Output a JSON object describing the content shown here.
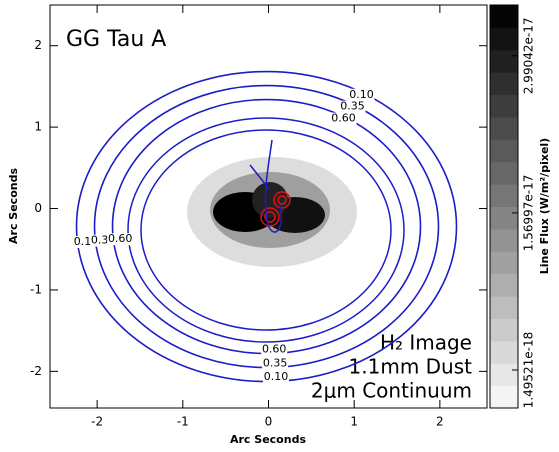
{
  "chart_data": {
    "type": "contour",
    "title": "GG Tau A",
    "x_label": "Arc Seconds",
    "y_label": "Arc Seconds",
    "xlim": [
      -2.55,
      2.55
    ],
    "ylim": [
      -2.45,
      2.5
    ],
    "xticks": [
      -2,
      -1,
      0,
      1,
      2
    ],
    "yticks": [
      -2,
      -1,
      0,
      1,
      2
    ],
    "contour_color": "#1c1cc8",
    "levels": [
      0.1,
      0.35,
      0.6
    ],
    "value_labels": [
      "0.10",
      "0.35",
      "0.60"
    ],
    "colorbar": {
      "label": "Line Flux (W/m²/pixel)",
      "lim": [
        -1.94e-18,
        3.45e-17
      ],
      "ticks": [
        1.49521e-18,
        1.56997e-17,
        2.99042e-17
      ]
    },
    "legend": [
      {
        "name": "H₂ Image",
        "color": "#000000"
      },
      {
        "name": "1.1mm Dust",
        "color": "#1c1cc8"
      },
      {
        "name": "2μm Continuum",
        "color": "#e01010"
      }
    ]
  }
}
